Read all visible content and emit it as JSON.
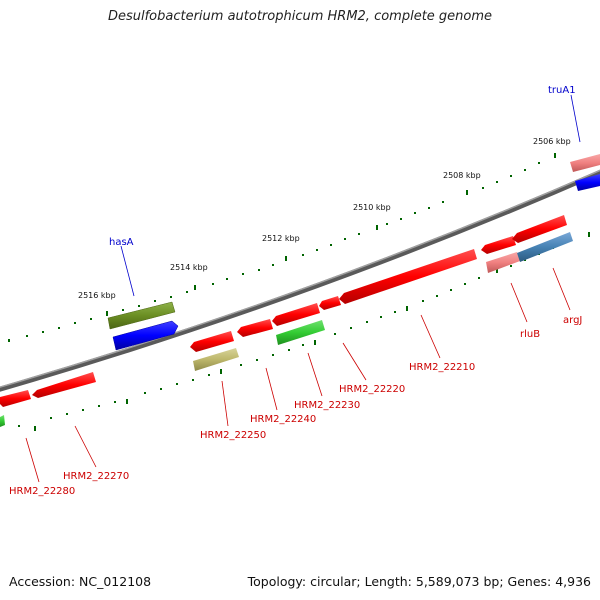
{
  "title": "Desulfobacterium autotrophicum HRM2, complete genome",
  "ticks": [
    "2506 kbp",
    "2508 kbp",
    "2510 kbp",
    "2512 kbp",
    "2514 kbp",
    "2516 kbp"
  ],
  "genes": {
    "truA1": "truA1",
    "hasA": "hasA",
    "rluB": "rluB",
    "argJ": "argJ",
    "hrm2_22210": "HRM2_22210",
    "hrm2_22220": "HRM2_22220",
    "hrm2_22230": "HRM2_22230",
    "hrm2_22240": "HRM2_22240",
    "hrm2_22250": "HRM2_22250",
    "hrm2_22270": "HRM2_22270",
    "hrm2_22280": "HRM2_22280"
  },
  "footer": {
    "accession": "Accession: NC_012108",
    "topology": "Topology: circular; Length: 5,589,073 bp; Genes: 4,936"
  },
  "colors": {
    "cds": "#ff0000",
    "blue": "#0000ff",
    "olive": "#6b8e23",
    "green": "#33cc33",
    "khaki": "#bdb76b",
    "pink": "#f08080",
    "steel": "#4682b4",
    "backbone": "#808080",
    "tick": "#006400",
    "label_red": "#cc0000",
    "label_blue": "#0000cc"
  }
}
